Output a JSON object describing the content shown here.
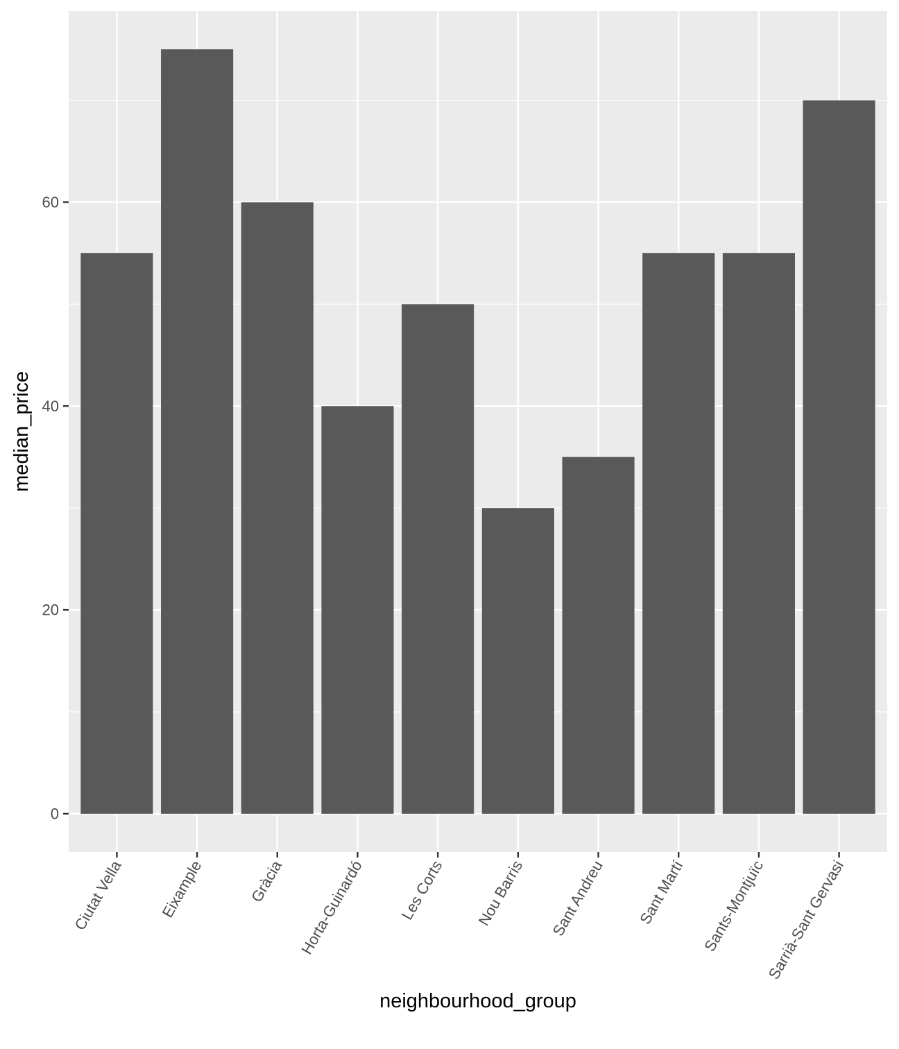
{
  "chart_data": {
    "type": "bar",
    "categories": [
      "Ciutat Vella",
      "Eixample",
      "Gràcia",
      "Horta-Guinardó",
      "Les Corts",
      "Nou Barris",
      "Sant Andreu",
      "Sant Martí",
      "Sants-Montjuïc",
      "Sarrià-Sant Gervasi"
    ],
    "values": [
      55,
      75,
      60,
      40,
      50,
      30,
      35,
      55,
      55,
      70
    ],
    "xlabel": "neighbourhood_group",
    "ylabel": "median_price",
    "ylim": [
      -3.75,
      78.75
    ],
    "yticks": [
      0,
      20,
      40,
      60
    ],
    "grid": true,
    "colors": {
      "bar": "#595959",
      "panel": "#ebebeb",
      "grid": "#ffffff",
      "tick": "#333333"
    }
  }
}
